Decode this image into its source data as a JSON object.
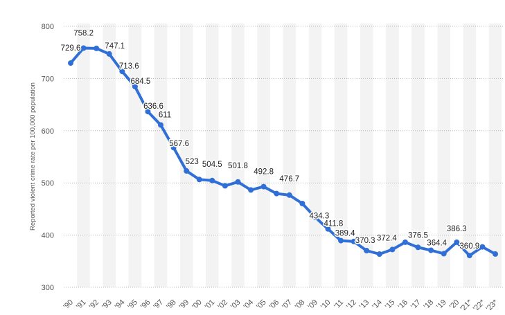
{
  "chart_data": {
    "type": "line",
    "title": "",
    "xlabel": "",
    "ylabel": "Reported violent crime rate per 100,000 population",
    "ylim": [
      300,
      800
    ],
    "y_ticks": [
      300,
      400,
      500,
      600,
      700,
      800
    ],
    "grid": true,
    "categories": [
      "'90",
      "'91",
      "'92",
      "'93",
      "'94",
      "'95",
      "'96",
      "'97",
      "'98",
      "'99",
      "'00",
      "'01",
      "'02",
      "'03",
      "'04",
      "'05",
      "'06",
      "'07",
      "'08",
      "'09",
      "'10",
      "'11",
      "'12",
      "'13",
      "'14",
      "'15",
      "'16",
      "'17",
      "'18",
      "'19",
      "'20",
      "'21*",
      "'22*",
      "'23*"
    ],
    "values": [
      729.6,
      758.2,
      757.7,
      747.1,
      713.6,
      684.5,
      636.6,
      611,
      567.6,
      523,
      506.5,
      504.5,
      494.4,
      501.8,
      486.5,
      492.8,
      479.6,
      476.7,
      460.5,
      434.3,
      411.8,
      389.4,
      387.8,
      370.3,
      363.6,
      372.4,
      386.3,
      376.5,
      370.9,
      364.4,
      386.3,
      360.9,
      377.5,
      363.8
    ],
    "data_labels": [
      "729.6",
      "758.2",
      "",
      "747.1",
      "713.6",
      "684.5",
      "636.6",
      "611",
      "567.6",
      "523",
      "",
      "504.5",
      "",
      "501.8",
      "",
      "492.8",
      "",
      "476.7",
      "",
      "434.3",
      "411.8",
      "389.4",
      "",
      "370.3",
      "",
      "372.4",
      "",
      "376.5",
      "",
      "364.4",
      "386.3",
      "360.9",
      "",
      ""
    ],
    "colors": {
      "line": "#2f6fd6",
      "band": "#f3f3f3"
    }
  }
}
